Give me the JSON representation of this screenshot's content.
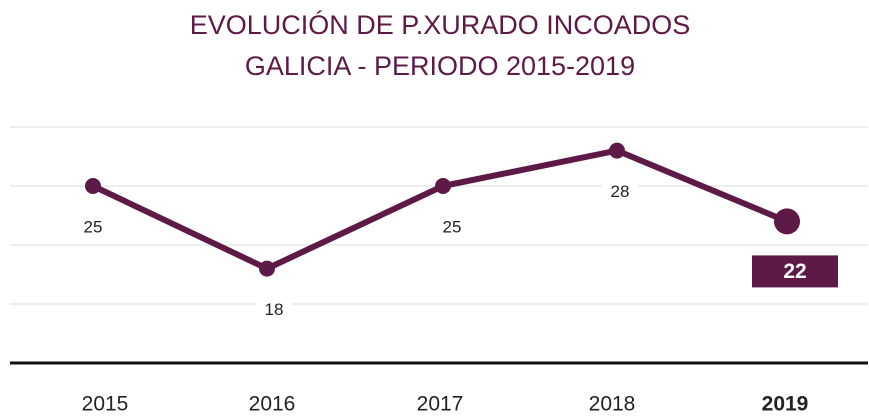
{
  "chart_data": {
    "type": "line",
    "title": [
      "EVOLUCIÓN DE P.XURADO INCOADOS",
      "GALICIA - PERIODO 2015-2019"
    ],
    "categories": [
      "2015",
      "2016",
      "2017",
      "2018",
      "2019"
    ],
    "series": [
      {
        "color": "#5e1a47",
        "values": [
          25,
          18,
          25,
          28,
          22
        ]
      }
    ],
    "ylim": [
      10,
      30
    ],
    "yticks": [
      10,
      15,
      20,
      25,
      30
    ],
    "grid": true
  }
}
